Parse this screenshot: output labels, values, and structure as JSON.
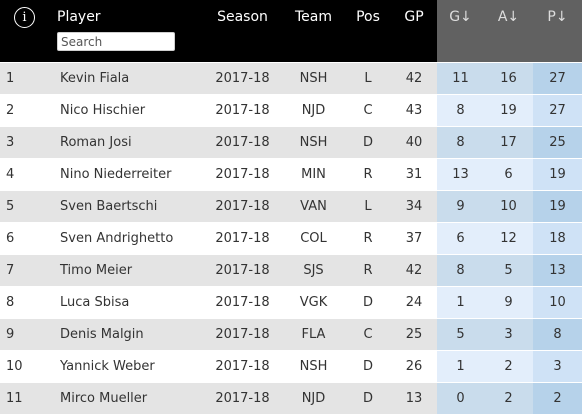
{
  "header": {
    "info_icon": "i",
    "player": "Player",
    "season": "Season",
    "team": "Team",
    "pos": "Pos",
    "gp": "GP",
    "g": "G↓",
    "a": "A↓",
    "p": "P↓"
  },
  "search": {
    "placeholder": "Search",
    "value": ""
  },
  "rows": [
    {
      "rank": "1",
      "player": "Kevin Fiala",
      "season": "2017-18",
      "team": "NSH",
      "pos": "L",
      "gp": "42",
      "g": "11",
      "a": "16",
      "p": "27"
    },
    {
      "rank": "2",
      "player": "Nico Hischier",
      "season": "2017-18",
      "team": "NJD",
      "pos": "C",
      "gp": "43",
      "g": "8",
      "a": "19",
      "p": "27"
    },
    {
      "rank": "3",
      "player": "Roman Josi",
      "season": "2017-18",
      "team": "NSH",
      "pos": "D",
      "gp": "40",
      "g": "8",
      "a": "17",
      "p": "25"
    },
    {
      "rank": "4",
      "player": "Nino Niederreiter",
      "season": "2017-18",
      "team": "MIN",
      "pos": "R",
      "gp": "31",
      "g": "13",
      "a": "6",
      "p": "19"
    },
    {
      "rank": "5",
      "player": "Sven Baertschi",
      "season": "2017-18",
      "team": "VAN",
      "pos": "L",
      "gp": "34",
      "g": "9",
      "a": "10",
      "p": "19"
    },
    {
      "rank": "6",
      "player": "Sven Andrighetto",
      "season": "2017-18",
      "team": "COL",
      "pos": "R",
      "gp": "37",
      "g": "6",
      "a": "12",
      "p": "18"
    },
    {
      "rank": "7",
      "player": "Timo Meier",
      "season": "2017-18",
      "team": "SJS",
      "pos": "R",
      "gp": "42",
      "g": "8",
      "a": "5",
      "p": "13"
    },
    {
      "rank": "8",
      "player": "Luca Sbisa",
      "season": "2017-18",
      "team": "VGK",
      "pos": "D",
      "gp": "24",
      "g": "1",
      "a": "9",
      "p": "10"
    },
    {
      "rank": "9",
      "player": "Denis Malgin",
      "season": "2017-18",
      "team": "FLA",
      "pos": "C",
      "gp": "25",
      "g": "5",
      "a": "3",
      "p": "8"
    },
    {
      "rank": "10",
      "player": "Yannick Weber",
      "season": "2017-18",
      "team": "NSH",
      "pos": "D",
      "gp": "26",
      "g": "1",
      "a": "2",
      "p": "3"
    },
    {
      "rank": "11",
      "player": "Mirco Mueller",
      "season": "2017-18",
      "team": "NJD",
      "pos": "D",
      "gp": "13",
      "g": "0",
      "a": "2",
      "p": "2"
    }
  ]
}
